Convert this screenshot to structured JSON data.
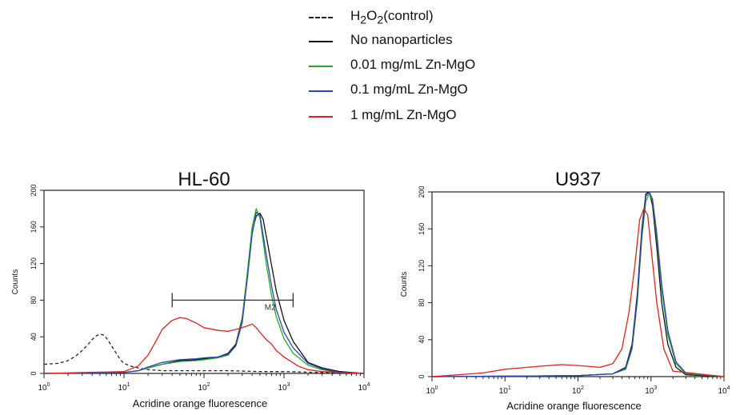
{
  "legend": [
    {
      "label_html": "H<sub>2</sub>O<sub>2</sub>(control)",
      "label": "H2O2(control)",
      "color": "#222222",
      "style": "dashed"
    },
    {
      "label": "No nanoparticles",
      "color": "#111111",
      "style": "solid"
    },
    {
      "label": "0.01 mg/mL Zn-MgO",
      "color": "#22aa22",
      "style": "solid"
    },
    {
      "label": "0.1 mg/mL Zn-MgO",
      "color": "#3344bb",
      "style": "solid"
    },
    {
      "label": "1 mg/mL Zn-MgO",
      "color": "#e02020",
      "style": "solid"
    }
  ],
  "chart_data": [
    {
      "type": "line",
      "title": "HL-60",
      "xlabel": "Acridine orange fluorescence",
      "ylabel": "Counts",
      "x_scale": "log",
      "xlim": [
        1,
        10000
      ],
      "ylim": [
        0,
        200
      ],
      "xticks": [
        "10^0",
        "10^1",
        "10^2",
        "10^3",
        "10^4"
      ],
      "yticks": [
        0,
        40,
        80,
        120,
        160,
        200
      ],
      "grid": false,
      "gate": {
        "label": "M2",
        "x_start": 40,
        "x_end": 1300,
        "y": 80
      },
      "series": [
        {
          "name": "H2O2(control)",
          "color": "#222222",
          "dash": true,
          "x": [
            1,
            1.5,
            2,
            2.5,
            3,
            3.5,
            4,
            4.5,
            5,
            5.5,
            6,
            7,
            8,
            9,
            10,
            12,
            15,
            20,
            30,
            50,
            100,
            200,
            500,
            1000,
            3000,
            10000
          ],
          "y": [
            10,
            11,
            14,
            19,
            25,
            31,
            37,
            41,
            43,
            42,
            39,
            30,
            22,
            15,
            11,
            8,
            6,
            4,
            3,
            3,
            3,
            3,
            2,
            2,
            1,
            0
          ]
        },
        {
          "name": "No nanoparticles",
          "color": "#111111",
          "x": [
            1,
            10,
            15,
            20,
            30,
            50,
            80,
            100,
            150,
            200,
            250,
            300,
            350,
            400,
            450,
            500,
            550,
            600,
            700,
            800,
            1000,
            1300,
            2000,
            3000,
            5000,
            10000
          ],
          "y": [
            0,
            1,
            3,
            6,
            10,
            14,
            15,
            16,
            18,
            22,
            32,
            60,
            110,
            155,
            172,
            175,
            168,
            150,
            118,
            90,
            58,
            35,
            12,
            6,
            2,
            0
          ]
        },
        {
          "name": "0.01 mg/mL Zn-MgO",
          "color": "#22aa22",
          "x": [
            1,
            10,
            15,
            20,
            30,
            50,
            80,
            100,
            150,
            200,
            250,
            300,
            350,
            400,
            450,
            500,
            600,
            700,
            800,
            1000,
            1300,
            2000,
            3000,
            5000,
            10000
          ],
          "y": [
            0,
            1,
            3,
            6,
            10,
            13,
            14,
            15,
            17,
            20,
            30,
            58,
            112,
            160,
            180,
            170,
            120,
            85,
            62,
            38,
            22,
            9,
            4,
            1,
            0
          ]
        },
        {
          "name": "0.1 mg/mL Zn-MgO",
          "color": "#3344bb",
          "x": [
            1,
            10,
            15,
            20,
            30,
            50,
            80,
            100,
            150,
            200,
            250,
            300,
            350,
            400,
            450,
            500,
            600,
            700,
            800,
            1000,
            1300,
            2000,
            3000,
            5000,
            10000
          ],
          "y": [
            0,
            1,
            3,
            7,
            12,
            15,
            16,
            17,
            18,
            21,
            30,
            55,
            105,
            152,
            176,
            173,
            130,
            95,
            70,
            45,
            28,
            11,
            5,
            1,
            0
          ]
        },
        {
          "name": "1 mg/mL Zn-MgO",
          "color": "#e02020",
          "x": [
            1,
            10,
            15,
            20,
            25,
            30,
            40,
            50,
            60,
            80,
            100,
            150,
            200,
            250,
            300,
            350,
            400,
            450,
            500,
            600,
            700,
            800,
            1000,
            1500,
            2000,
            3000,
            10000
          ],
          "y": [
            0,
            2,
            8,
            20,
            35,
            48,
            58,
            61,
            60,
            55,
            50,
            47,
            46,
            48,
            50,
            52,
            54,
            50,
            45,
            37,
            32,
            25,
            18,
            8,
            4,
            2,
            0
          ]
        }
      ]
    },
    {
      "type": "line",
      "title": "U937",
      "xlabel": "Acridine orange fluorescence",
      "ylabel": "Counts",
      "x_scale": "log",
      "xlim": [
        1,
        10000
      ],
      "ylim": [
        0,
        200
      ],
      "xticks": [
        "10^0",
        "10^1",
        "10^2",
        "10^3",
        "10^4"
      ],
      "yticks": [
        0,
        40,
        80,
        120,
        160,
        200
      ],
      "grid": false,
      "series": [
        {
          "name": "No nanoparticles",
          "color": "#111111",
          "x": [
            1,
            100,
            300,
            450,
            550,
            650,
            750,
            850,
            950,
            1050,
            1200,
            1400,
            1700,
            2200,
            3000,
            10000
          ],
          "y": [
            0,
            1,
            3,
            10,
            35,
            90,
            160,
            198,
            200,
            185,
            140,
            80,
            35,
            10,
            2,
            0
          ]
        },
        {
          "name": "0.01 mg/mL Zn-MgO",
          "color": "#22aa22",
          "x": [
            1,
            100,
            300,
            450,
            550,
            650,
            750,
            850,
            950,
            1050,
            1200,
            1400,
            1700,
            2200,
            3000,
            10000
          ],
          "y": [
            0,
            1,
            3,
            8,
            30,
            82,
            150,
            190,
            198,
            190,
            150,
            95,
            45,
            14,
            3,
            0
          ]
        },
        {
          "name": "0.1 mg/mL Zn-MgO",
          "color": "#3344bb",
          "x": [
            1,
            100,
            300,
            450,
            550,
            650,
            750,
            850,
            950,
            1050,
            1200,
            1400,
            1700,
            2200,
            3000,
            10000
          ],
          "y": [
            0,
            1,
            3,
            9,
            32,
            85,
            155,
            195,
            200,
            192,
            155,
            100,
            50,
            16,
            4,
            0
          ]
        },
        {
          "name": "1 mg/mL Zn-MgO",
          "color": "#e02020",
          "x": [
            1,
            5,
            10,
            20,
            40,
            60,
            100,
            200,
            300,
            400,
            500,
            600,
            700,
            800,
            900,
            1000,
            1200,
            1500,
            2000,
            10000
          ],
          "y": [
            0,
            4,
            8,
            10,
            12,
            13,
            12,
            10,
            14,
            30,
            70,
            120,
            170,
            182,
            175,
            140,
            80,
            30,
            6,
            0
          ]
        }
      ]
    }
  ]
}
